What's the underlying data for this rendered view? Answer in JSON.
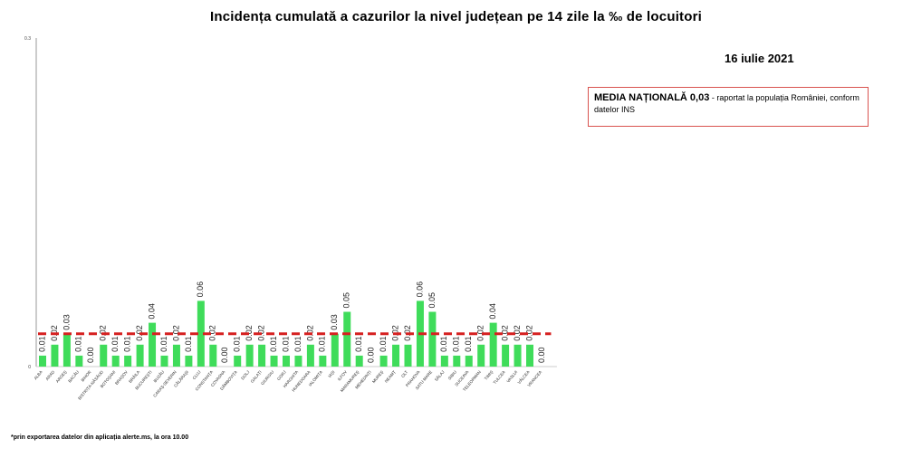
{
  "chart_data": {
    "type": "bar",
    "title": "Incidența cumulată a cazurilor la nivel județean pe 14 zile   la ‰ de locuitori",
    "date": "16 iulie 2021",
    "ylim": [
      0,
      0.3
    ],
    "yticks": [
      "0",
      "0.3"
    ],
    "reference_line": 0.03,
    "categories": [
      "ALBA",
      "ARAD",
      "ARGEȘ",
      "BACĂU",
      "BIHOR",
      "BISTRIȚA-NĂSĂUD",
      "BOTOȘANI",
      "BRAȘOV",
      "BRĂILA",
      "BUCUREȘTI",
      "BUZĂU",
      "CARAȘ-SEVERIN",
      "CĂLĂRAȘI",
      "CLUJ",
      "CONSTANȚA",
      "COVASNA",
      "DÂMBOVIȚA",
      "DOLJ",
      "GALAȚI",
      "GIURGIU",
      "GORJ",
      "HARGHITA",
      "HUNEDOARA",
      "IALOMIȚA",
      "IAȘI",
      "ILFOV",
      "MARAMUREȘ",
      "MEHEDINȚI",
      "MUREȘ",
      "NEAMȚ",
      "OLT",
      "PRAHOVA",
      "SATU MARE",
      "SĂLAJ",
      "SIBIU",
      "SUCEAVA",
      "TELEORMAN",
      "TIMIȘ",
      "TULCEA",
      "VASLUI",
      "VÂLCEA",
      "VRANCEA"
    ],
    "values": [
      0.01,
      0.02,
      0.03,
      0.01,
      0.0,
      0.02,
      0.01,
      0.01,
      0.02,
      0.04,
      0.01,
      0.02,
      0.01,
      0.06,
      0.02,
      0.0,
      0.01,
      0.02,
      0.02,
      0.01,
      0.01,
      0.01,
      0.02,
      0.01,
      0.03,
      0.05,
      0.01,
      0.0,
      0.01,
      0.02,
      0.02,
      0.06,
      0.05,
      0.01,
      0.01,
      0.01,
      0.02,
      0.04,
      0.02,
      0.02,
      0.02,
      0.0
    ],
    "labels": [
      "0.01",
      "0.02",
      "0.03",
      "0.01",
      "0.00",
      "0.02",
      "0.01",
      "0.01",
      "0.02",
      "0.04",
      "0.01",
      "0.02",
      "0.01",
      "0.06",
      "0.02",
      "0.00",
      "0.01",
      "0.02",
      "0.02",
      "0.01",
      "0.01",
      "0.01",
      "0.02",
      "0.01",
      "0.03",
      "0.05",
      "0.01",
      "0.00",
      "0.01",
      "0.02",
      "0.02",
      "0.06",
      "0.05",
      "0.01",
      "0.01",
      "0.01",
      "0.02",
      "0.04",
      "0.02",
      "0.02",
      "0.02",
      "0.00"
    ],
    "colors": {
      "bar": "#3fdc5a",
      "reference": "#d62020",
      "axis": "#999999"
    }
  },
  "annotation": {
    "head": "MEDIA NAȚIONALĂ 0,03",
    "text": " - raportat la populația României, conform datelor INS"
  },
  "footnote": "*prin exportarea datelor din aplicația alerte.ms, la ora 10.00"
}
